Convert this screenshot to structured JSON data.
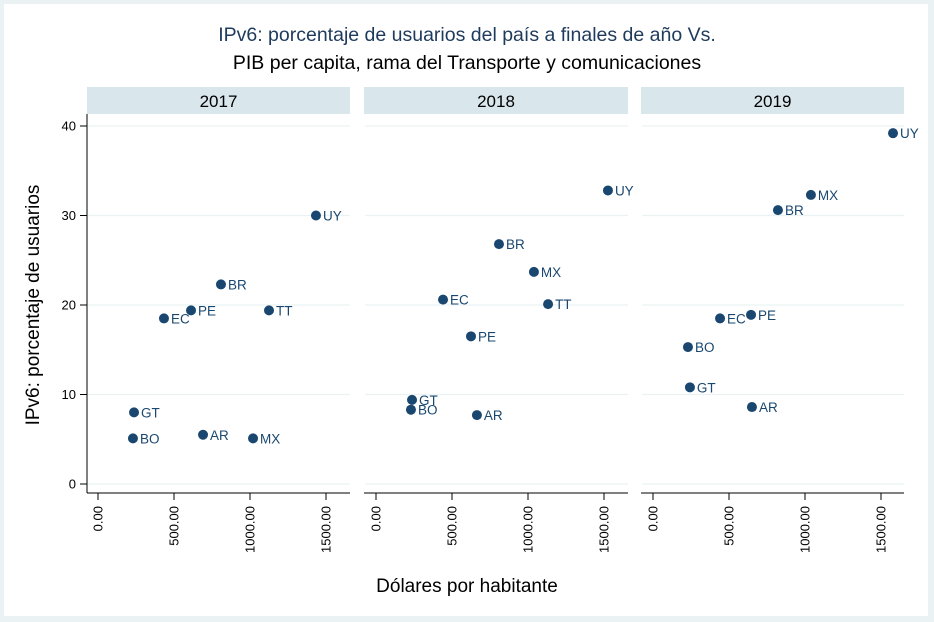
{
  "chart_data": {
    "type": "scatter",
    "title": [
      "IPv6: porcentaje de usuarios del país a finales de año Vs.",
      "PIB per capita, rama del Transporte y comunicaciones"
    ],
    "xlabel": "Dólares por habitante",
    "ylabel": "IPv6: porcentaje de usuarios",
    "ylim": [
      0,
      40
    ],
    "yticks": [
      0,
      10,
      20,
      30,
      40
    ],
    "ytick_labels": [
      "0",
      "10",
      "20",
      "30",
      "40"
    ],
    "xlim": [
      -70,
      1700
    ],
    "xticks": [
      0,
      500,
      1000,
      1500
    ],
    "xtick_labels": [
      "0.00",
      "500.00",
      "1000.00",
      "1500.00"
    ],
    "grid": true,
    "marker_color": "#1a476f",
    "panels": [
      {
        "label": "2017",
        "points": [
          {
            "name": "UY",
            "x": 1434,
            "y": 30.0
          },
          {
            "name": "BR",
            "x": 809,
            "y": 22.3
          },
          {
            "name": "PE",
            "x": 612,
            "y": 19.4
          },
          {
            "name": "EC",
            "x": 434,
            "y": 18.5
          },
          {
            "name": "TT",
            "x": 1125,
            "y": 19.4
          },
          {
            "name": "GT",
            "x": 237,
            "y": 8.0
          },
          {
            "name": "BO",
            "x": 230,
            "y": 5.1
          },
          {
            "name": "AR",
            "x": 691,
            "y": 5.5
          },
          {
            "name": "MX",
            "x": 1020,
            "y": 5.1
          }
        ]
      },
      {
        "label": "2018",
        "points": [
          {
            "name": "UY",
            "x": 1526,
            "y": 32.8
          },
          {
            "name": "BR",
            "x": 809,
            "y": 26.8
          },
          {
            "name": "MX",
            "x": 1039,
            "y": 23.7
          },
          {
            "name": "EC",
            "x": 441,
            "y": 20.6
          },
          {
            "name": "TT",
            "x": 1132,
            "y": 20.1
          },
          {
            "name": "PE",
            "x": 625,
            "y": 16.5
          },
          {
            "name": "GT",
            "x": 237,
            "y": 9.4
          },
          {
            "name": "BO",
            "x": 230,
            "y": 8.3
          },
          {
            "name": "AR",
            "x": 664,
            "y": 7.7
          }
        ]
      },
      {
        "label": "2019",
        "points": [
          {
            "name": "UY",
            "x": 1579,
            "y": 39.2
          },
          {
            "name": "MX",
            "x": 1039,
            "y": 32.3
          },
          {
            "name": "BR",
            "x": 822,
            "y": 30.6
          },
          {
            "name": "EC",
            "x": 441,
            "y": 18.5
          },
          {
            "name": "PE",
            "x": 645,
            "y": 18.9
          },
          {
            "name": "BO",
            "x": 230,
            "y": 15.3
          },
          {
            "name": "GT",
            "x": 243,
            "y": 10.8
          },
          {
            "name": "AR",
            "x": 651,
            "y": 8.6
          }
        ]
      }
    ]
  }
}
